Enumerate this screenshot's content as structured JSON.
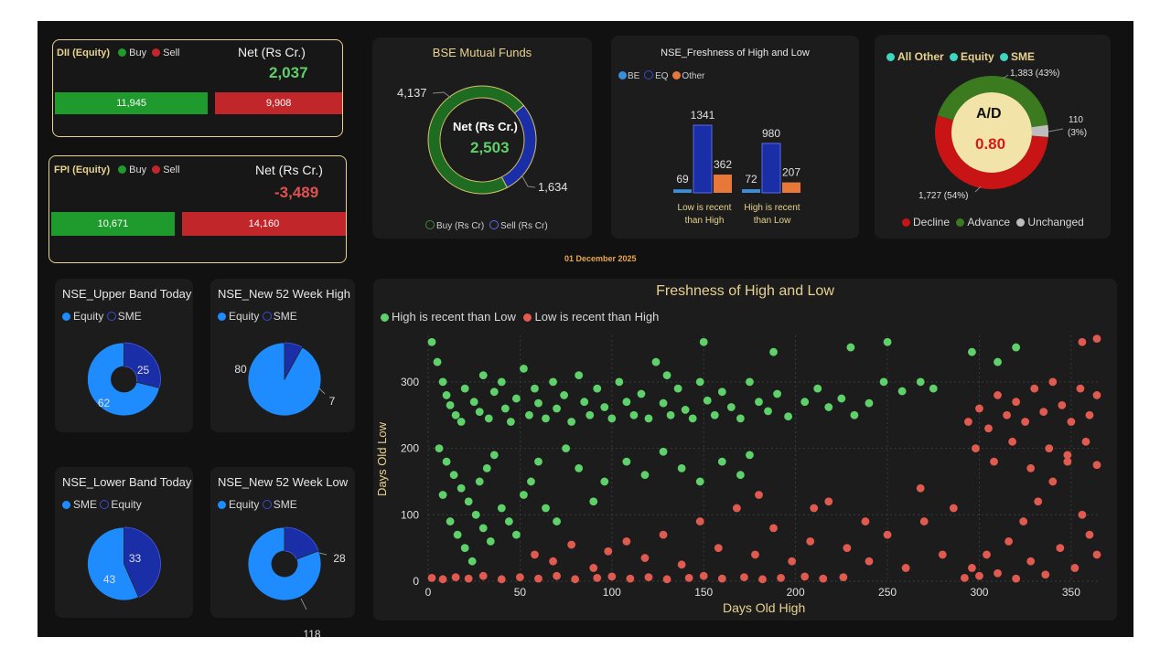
{
  "report_date": "01 December 2025",
  "dii": {
    "title": "DII (Equity)",
    "buy_label": "Buy",
    "sell_label": "Sell",
    "net_label": "Net (Rs Cr.)",
    "net_value": "2,037",
    "buy": 11945,
    "sell": 9908,
    "buy_text": "11,945",
    "sell_text": "9,908",
    "colors": {
      "buy": "#1f9a2c",
      "sell": "#c0262a",
      "net": "#5fd068"
    }
  },
  "fpi": {
    "title": "FPI (Equity)",
    "buy_label": "Buy",
    "sell_label": "Sell",
    "net_label": "Net (Rs Cr.)",
    "net_value": "-3,489",
    "buy": 10671,
    "sell": 14160,
    "buy_text": "10,671",
    "sell_text": "14,160",
    "colors": {
      "buy": "#1f9a2c",
      "sell": "#c0262a",
      "net": "#e05252"
    }
  },
  "bse_mf": {
    "title": "BSE Mutual Funds",
    "center_label": "Net (Rs Cr.)",
    "center_value": "2,503",
    "buy": 4137,
    "sell": 1634,
    "buy_text": "4,137",
    "sell_text": "1,634",
    "legend": [
      "Buy (Rs Cr)",
      "Sell (Rs Cr)"
    ],
    "colors": {
      "buy": "#1e6b22",
      "sell": "#1a2ea8"
    }
  },
  "nse_fresh_bar": {
    "title": "NSE_Freshness of High and Low",
    "legend": [
      "BE",
      "EQ",
      "Other"
    ],
    "colors": {
      "BE": "#3a8fd8",
      "EQ": "#1a2ea8",
      "Other": "#e8773a"
    },
    "groups": [
      {
        "label": "Low is recent than High",
        "values": [
          69,
          1341,
          362
        ],
        "texts": [
          "69",
          "1341",
          "362"
        ]
      },
      {
        "label": "High is recent than Low",
        "values": [
          72,
          980,
          207
        ],
        "texts": [
          "72",
          "980",
          "207"
        ]
      }
    ]
  },
  "ad": {
    "legend_top": [
      "All Other",
      "Equity",
      "SME"
    ],
    "center_label": "A/D",
    "center_value": "0.80",
    "slices": [
      {
        "name": "Decline",
        "value": 1727,
        "label": "1,727 (54%)",
        "color": "#c81414"
      },
      {
        "name": "Advance",
        "value": 1383,
        "label": "1,383 (43%)",
        "color": "#3b7a1f"
      },
      {
        "name": "Unchanged",
        "value": 110,
        "label": "110",
        "sub": "(3%)",
        "color": "#bdbdbd"
      }
    ],
    "legend_bottom": [
      "Decline",
      "Advance",
      "Unchanged"
    ]
  },
  "pies": [
    {
      "title": "NSE_Upper Band Today",
      "legend": [
        "Equity",
        "SME"
      ],
      "values": [
        62,
        25
      ],
      "texts": [
        "62",
        "25"
      ],
      "donut": true
    },
    {
      "title": "NSE_New 52 Week High",
      "legend": [
        "Equity",
        "SME"
      ],
      "values": [
        80,
        7
      ],
      "texts": [
        "80",
        "7"
      ],
      "donut": false
    },
    {
      "title": "NSE_Lower Band Today",
      "legend": [
        "SME",
        "Equity"
      ],
      "values": [
        43,
        33
      ],
      "texts": [
        "43",
        "33"
      ],
      "donut": false
    },
    {
      "title": "NSE_New 52 Week Low",
      "legend": [
        "Equity",
        "SME"
      ],
      "values": [
        118,
        28
      ],
      "texts": [
        "118",
        "28"
      ],
      "donut": true
    }
  ],
  "pie_colors": {
    "primary": "#1e8cff",
    "secondary": "#1a2ea8"
  },
  "chart_data": {
    "type": "scatter",
    "title": "Freshness of High and Low",
    "xlabel": "Days Old High",
    "ylabel": "Days Old Low",
    "xlim": [
      0,
      366
    ],
    "ylim": [
      0,
      370
    ],
    "xticks": [
      "0",
      "50",
      "100",
      "150",
      "200",
      "250",
      "300",
      "350"
    ],
    "yticks": [
      "0",
      "100",
      "200",
      "300"
    ],
    "grid": true,
    "legend_position": "top-left",
    "series": [
      {
        "name": "High is recent than Low",
        "color": "#5fd16a",
        "points": [
          [
            2,
            360
          ],
          [
            5,
            330
          ],
          [
            8,
            300
          ],
          [
            10,
            280
          ],
          [
            12,
            265
          ],
          [
            15,
            250
          ],
          [
            18,
            240
          ],
          [
            20,
            290
          ],
          [
            25,
            270
          ],
          [
            28,
            255
          ],
          [
            30,
            310
          ],
          [
            33,
            245
          ],
          [
            36,
            285
          ],
          [
            40,
            300
          ],
          [
            42,
            260
          ],
          [
            45,
            240
          ],
          [
            48,
            275
          ],
          [
            52,
            320
          ],
          [
            55,
            250
          ],
          [
            58,
            290
          ],
          [
            60,
            268
          ],
          [
            64,
            245
          ],
          [
            68,
            300
          ],
          [
            70,
            260
          ],
          [
            74,
            280
          ],
          [
            78,
            240
          ],
          [
            82,
            310
          ],
          [
            85,
            270
          ],
          [
            88,
            250
          ],
          [
            92,
            290
          ],
          [
            96,
            262
          ],
          [
            100,
            245
          ],
          [
            104,
            300
          ],
          [
            108,
            270
          ],
          [
            112,
            250
          ],
          [
            116,
            282
          ],
          [
            120,
            245
          ],
          [
            124,
            330
          ],
          [
            128,
            268
          ],
          [
            132,
            250
          ],
          [
            136,
            290
          ],
          [
            140,
            258
          ],
          [
            144,
            245
          ],
          [
            148,
            300
          ],
          [
            152,
            272
          ],
          [
            156,
            250
          ],
          [
            160,
            285
          ],
          [
            165,
            262
          ],
          [
            170,
            245
          ],
          [
            175,
            300
          ],
          [
            180,
            270
          ],
          [
            185,
            256
          ],
          [
            190,
            282
          ],
          [
            196,
            248
          ],
          [
            205,
            270
          ],
          [
            212,
            290
          ],
          [
            218,
            262
          ],
          [
            225,
            275
          ],
          [
            232,
            250
          ],
          [
            240,
            268
          ],
          [
            248,
            300
          ],
          [
            258,
            286
          ],
          [
            268,
            300
          ],
          [
            275,
            290
          ],
          [
            6,
            200
          ],
          [
            10,
            180
          ],
          [
            14,
            160
          ],
          [
            18,
            140
          ],
          [
            22,
            120
          ],
          [
            26,
            100
          ],
          [
            30,
            80
          ],
          [
            34,
            60
          ],
          [
            8,
            130
          ],
          [
            12,
            90
          ],
          [
            16,
            70
          ],
          [
            20,
            50
          ],
          [
            24,
            30
          ],
          [
            28,
            150
          ],
          [
            32,
            170
          ],
          [
            36,
            190
          ],
          [
            40,
            110
          ],
          [
            44,
            90
          ],
          [
            48,
            70
          ],
          [
            52,
            130
          ],
          [
            56,
            150
          ],
          [
            60,
            180
          ],
          [
            64,
            110
          ],
          [
            70,
            90
          ],
          [
            75,
            200
          ],
          [
            82,
            170
          ],
          [
            90,
            120
          ],
          [
            96,
            150
          ],
          [
            108,
            180
          ],
          [
            118,
            160
          ],
          [
            128,
            195
          ],
          [
            138,
            170
          ],
          [
            148,
            150
          ],
          [
            160,
            180
          ],
          [
            170,
            160
          ],
          [
            175,
            190
          ],
          [
            130,
            310
          ],
          [
            150,
            360
          ],
          [
            188,
            345
          ],
          [
            230,
            352
          ],
          [
            250,
            360
          ],
          [
            296,
            345
          ],
          [
            310,
            330
          ],
          [
            320,
            352
          ]
        ]
      },
      {
        "name": "Low is recent than High",
        "color": "#e05a4f",
        "points": [
          [
            2,
            5
          ],
          [
            8,
            3
          ],
          [
            15,
            6
          ],
          [
            22,
            4
          ],
          [
            30,
            8
          ],
          [
            40,
            3
          ],
          [
            50,
            6
          ],
          [
            60,
            4
          ],
          [
            70,
            8
          ],
          [
            80,
            3
          ],
          [
            92,
            5
          ],
          [
            100,
            7
          ],
          [
            110,
            4
          ],
          [
            120,
            6
          ],
          [
            130,
            3
          ],
          [
            142,
            5
          ],
          [
            150,
            8
          ],
          [
            160,
            4
          ],
          [
            172,
            6
          ],
          [
            182,
            3
          ],
          [
            192,
            5
          ],
          [
            205,
            7
          ],
          [
            215,
            4
          ],
          [
            226,
            6
          ],
          [
            58,
            40
          ],
          [
            68,
            30
          ],
          [
            78,
            55
          ],
          [
            90,
            20
          ],
          [
            98,
            45
          ],
          [
            108,
            60
          ],
          [
            118,
            35
          ],
          [
            128,
            70
          ],
          [
            138,
            25
          ],
          [
            148,
            90
          ],
          [
            158,
            50
          ],
          [
            168,
            110
          ],
          [
            178,
            40
          ],
          [
            188,
            80
          ],
          [
            198,
            30
          ],
          [
            208,
            60
          ],
          [
            218,
            120
          ],
          [
            228,
            50
          ],
          [
            240,
            30
          ],
          [
            250,
            70
          ],
          [
            260,
            20
          ],
          [
            270,
            90
          ],
          [
            280,
            40
          ],
          [
            292,
            5
          ],
          [
            296,
            20
          ],
          [
            300,
            8
          ],
          [
            304,
            40
          ],
          [
            310,
            12
          ],
          [
            316,
            60
          ],
          [
            320,
            4
          ],
          [
            324,
            90
          ],
          [
            328,
            30
          ],
          [
            332,
            120
          ],
          [
            336,
            10
          ],
          [
            340,
            150
          ],
          [
            344,
            50
          ],
          [
            348,
            180
          ],
          [
            352,
            20
          ],
          [
            356,
            100
          ],
          [
            360,
            70
          ],
          [
            364,
            40
          ],
          [
            294,
            240
          ],
          [
            300,
            260
          ],
          [
            305,
            230
          ],
          [
            310,
            280
          ],
          [
            315,
            250
          ],
          [
            320,
            270
          ],
          [
            325,
            240
          ],
          [
            330,
            290
          ],
          [
            335,
            255
          ],
          [
            340,
            300
          ],
          [
            345,
            265
          ],
          [
            350,
            240
          ],
          [
            355,
            290
          ],
          [
            360,
            250
          ],
          [
            364,
            280
          ],
          [
            298,
            200
          ],
          [
            308,
            180
          ],
          [
            318,
            210
          ],
          [
            328,
            170
          ],
          [
            338,
            200
          ],
          [
            348,
            190
          ],
          [
            358,
            210
          ],
          [
            364,
            175
          ],
          [
            180,
            130
          ],
          [
            210,
            110
          ],
          [
            238,
            90
          ],
          [
            268,
            140
          ],
          [
            286,
            110
          ],
          [
            356,
            360
          ],
          [
            364,
            365
          ]
        ]
      }
    ]
  }
}
